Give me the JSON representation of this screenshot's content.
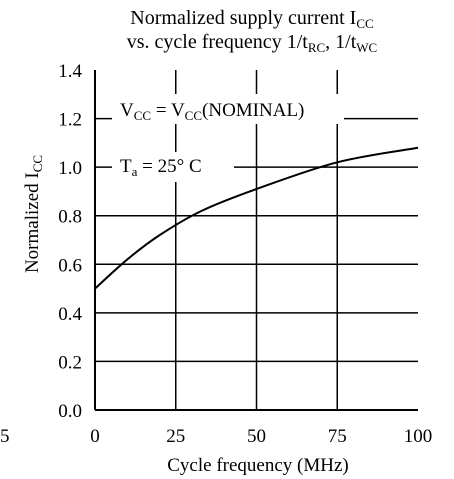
{
  "chart_data": {
    "type": "line",
    "title_line1": "Normalized supply current I",
    "title_line1_sub": "CC",
    "title_line2_a": "vs. cycle frequency 1/t",
    "title_line2_sub_a": "RC",
    "title_line2_b": ", 1/t",
    "title_line2_sub_b": "WC",
    "xlabel": "Cycle frequency (MHz)",
    "ylabel_main": "Normalized I",
    "ylabel_sub": "CC",
    "xlim": [
      0,
      100
    ],
    "ylim": [
      0,
      1.4
    ],
    "x_ticks": [
      "0",
      "25",
      "50",
      "75",
      "100"
    ],
    "y_ticks": [
      "0.0",
      "0.2",
      "0.4",
      "0.6",
      "0.8",
      "1.0",
      "1.2",
      "1.4"
    ],
    "grid": true,
    "stray_label": "5",
    "series": [
      {
        "x": [
          0,
          10,
          20,
          33,
          50,
          75,
          100
        ],
        "y": [
          0.5,
          0.62,
          0.72,
          0.82,
          0.91,
          1.02,
          1.08
        ]
      }
    ],
    "annotations": {
      "vcc": {
        "main": "V",
        "sub1": "CC",
        "mid": " = V",
        "sub2": "CC",
        "end": "(NOMINAL)"
      },
      "ta": {
        "main": "T",
        "sub": "a",
        "rest": " = 25° C"
      }
    }
  }
}
